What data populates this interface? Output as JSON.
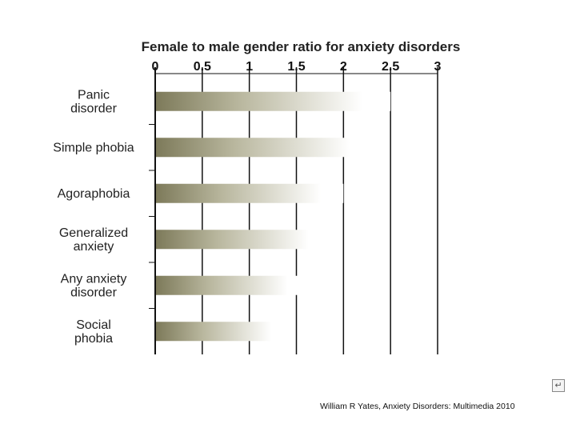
{
  "chart_data": {
    "type": "bar",
    "orientation": "horizontal",
    "title": "Female to male gender ratio for anxiety disorders",
    "xlabel": "",
    "ylabel": "",
    "xlim": [
      0,
      3
    ],
    "x_ticks": [
      "0",
      "0.5",
      "1",
      "1.5",
      "2",
      "2.5",
      "3"
    ],
    "grid": "vertical",
    "categories": [
      [
        "Panic",
        "disorder"
      ],
      [
        "Simple phobia"
      ],
      [
        "Agoraphobia"
      ],
      [
        "Generalized",
        "anxiety"
      ],
      [
        "Any anxiety",
        "disorder"
      ],
      [
        "Social",
        "phobia"
      ]
    ],
    "values": [
      2.5,
      2.35,
      2.0,
      1.85,
      1.6,
      1.4
    ],
    "bar_color_dark": "#7d7a5a",
    "bar_color_light": "#ffffff"
  },
  "footer": {
    "credit": "William R Yates, Anxiety Disorders: Multimedia 2010"
  },
  "icons": {
    "corner": "return-arrow-icon"
  }
}
